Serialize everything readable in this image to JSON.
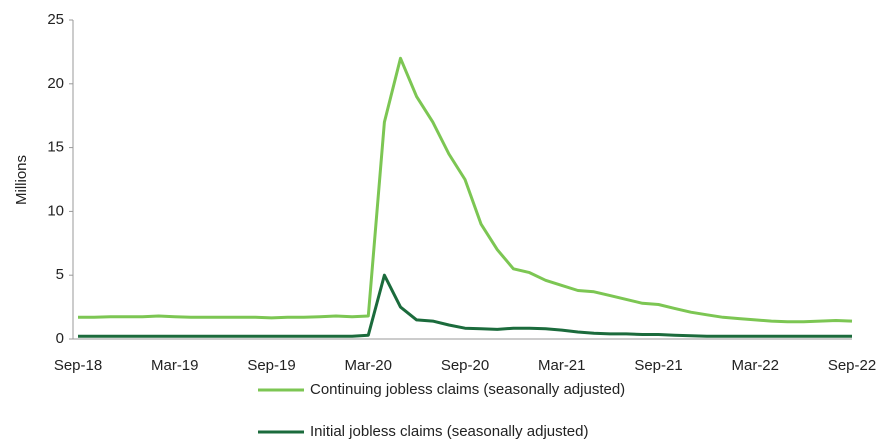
{
  "chart_data": {
    "type": "line",
    "y_label": "Millions",
    "categories": [
      "Sep-18",
      null,
      null,
      null,
      null,
      null,
      "Mar-19",
      null,
      null,
      null,
      null,
      null,
      "Sep-19",
      null,
      null,
      null,
      null,
      null,
      "Mar-20",
      null,
      null,
      null,
      null,
      null,
      "Sep-20",
      null,
      null,
      null,
      null,
      null,
      "Mar-21",
      null,
      null,
      null,
      null,
      null,
      "Sep-21",
      null,
      null,
      null,
      null,
      null,
      "Mar-22",
      null,
      null,
      null,
      null,
      null,
      "Sep-22"
    ],
    "series": [
      {
        "name": "Continuing jobless claims (seasonally adjusted)",
        "color": "#7cc653",
        "values": [
          1.7,
          1.7,
          1.75,
          1.75,
          1.75,
          1.8,
          1.75,
          1.7,
          1.7,
          1.7,
          1.7,
          1.7,
          1.65,
          1.7,
          1.7,
          1.75,
          1.8,
          1.75,
          1.8,
          17,
          22,
          19,
          17,
          14.5,
          12.5,
          9,
          7,
          5.5,
          5.2,
          4.6,
          4.2,
          3.8,
          3.7,
          3.4,
          3.1,
          2.8,
          2.7,
          2.4,
          2.1,
          1.9,
          1.7,
          1.6,
          1.5,
          1.4,
          1.35,
          1.35,
          1.4,
          1.45,
          1.4
        ]
      },
      {
        "name": "Initial jobless claims (seasonally adjusted)",
        "color": "#1b6b3c",
        "values": [
          0.22,
          0.22,
          0.22,
          0.22,
          0.22,
          0.22,
          0.22,
          0.22,
          0.22,
          0.22,
          0.22,
          0.22,
          0.22,
          0.22,
          0.22,
          0.22,
          0.22,
          0.22,
          0.3,
          5,
          2.5,
          1.5,
          1.4,
          1.1,
          0.85,
          0.8,
          0.75,
          0.85,
          0.85,
          0.8,
          0.7,
          0.55,
          0.45,
          0.4,
          0.4,
          0.35,
          0.35,
          0.3,
          0.25,
          0.22,
          0.21,
          0.21,
          0.21,
          0.21,
          0.21,
          0.21,
          0.21,
          0.21,
          0.21
        ]
      }
    ],
    "ylim": [
      0,
      25
    ],
    "yticks": [
      0,
      5,
      10,
      15,
      20,
      25
    ]
  }
}
